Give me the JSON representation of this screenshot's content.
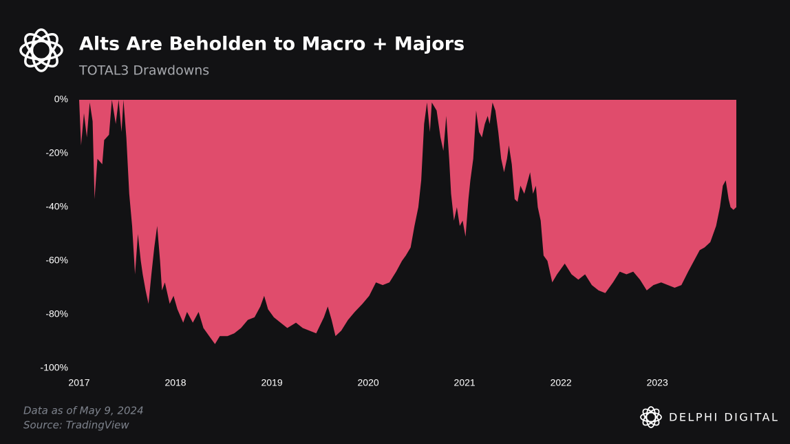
{
  "chart_data": {
    "type": "area",
    "title": "Alts Are Beholden to Macro + Majors",
    "subtitle": "TOTAL3 Drawdowns",
    "note": "Data as of May 9, 2024",
    "source": "Source: TradingView",
    "brand": "DELPHI DIGITAL",
    "color": "#e04c6c",
    "x": [
      2017.0,
      2017.02,
      2017.05,
      2017.08,
      2017.11,
      2017.14,
      2017.16,
      2017.19,
      2017.24,
      2017.26,
      2017.31,
      2017.34,
      2017.38,
      2017.41,
      2017.44,
      2017.46,
      2017.49,
      2017.52,
      2017.55,
      2017.58,
      2017.61,
      2017.64,
      2017.66,
      2017.69,
      2017.72,
      2017.75,
      2017.78,
      2017.81,
      2017.84,
      2017.86,
      2017.89,
      2017.94,
      2017.98,
      2018.02,
      2018.08,
      2018.12,
      2018.18,
      2018.24,
      2018.29,
      2018.35,
      2018.41,
      2018.46,
      2018.54,
      2018.61,
      2018.68,
      2018.75,
      2018.82,
      2018.88,
      2018.92,
      2018.96,
      2019.02,
      2019.09,
      2019.16,
      2019.25,
      2019.32,
      2019.39,
      2019.46,
      2019.54,
      2019.58,
      2019.62,
      2019.66,
      2019.72,
      2019.79,
      2019.86,
      2019.94,
      2020.01,
      2020.08,
      2020.15,
      2020.22,
      2020.29,
      2020.35,
      2020.39,
      2020.44,
      2020.48,
      2020.52,
      2020.55,
      2020.58,
      2020.61,
      2020.64,
      2020.66,
      2020.71,
      2020.75,
      2020.78,
      2020.81,
      2020.84,
      2020.86,
      2020.89,
      2020.92,
      2020.95,
      2020.98,
      2021.01,
      2021.04,
      2021.06,
      2021.09,
      2021.12,
      2021.15,
      2021.18,
      2021.21,
      2021.24,
      2021.26,
      2021.29,
      2021.32,
      2021.35,
      2021.38,
      2021.41,
      2021.44,
      2021.46,
      2021.49,
      2021.52,
      2021.55,
      2021.58,
      2021.62,
      2021.68,
      2021.71,
      2021.74,
      2021.76,
      2021.79,
      2021.82,
      2021.86,
      2021.91,
      2021.96,
      2022.04,
      2022.11,
      2022.18,
      2022.25,
      2022.32,
      2022.39,
      2022.46,
      2022.54,
      2022.61,
      2022.68,
      2022.75,
      2022.82,
      2022.89,
      2022.96,
      2023.04,
      2023.11,
      2023.18,
      2023.25,
      2023.32,
      2023.38,
      2023.44,
      2023.49,
      2023.55,
      2023.61,
      2023.65,
      2023.68,
      2023.71,
      2023.74,
      2023.76,
      2023.79,
      2023.82
    ],
    "values": [
      0,
      -17,
      -5,
      -14,
      -1,
      -8,
      -37,
      -22,
      -24,
      -15,
      -13,
      0,
      -9,
      0,
      -12,
      0,
      -14,
      -35,
      -47,
      -65,
      -50,
      -60,
      -65,
      -71,
      -76,
      -65,
      -55,
      -47,
      -60,
      -71,
      -68,
      -76,
      -73,
      -78,
      -83,
      -79,
      -83,
      -79,
      -85,
      -88,
      -91,
      -88,
      -88,
      -87,
      -85,
      -82,
      -81,
      -77,
      -73,
      -78,
      -81,
      -83,
      -85,
      -83,
      -85,
      -86,
      -87,
      -81,
      -77,
      -82,
      -88,
      -86,
      -82,
      -79,
      -76,
      -73,
      -68,
      -69,
      -68,
      -64,
      -60,
      -58,
      -55,
      -47,
      -40,
      -30,
      -9,
      -1,
      -12,
      -1,
      -4,
      -14,
      -19,
      -6,
      -22,
      -35,
      -45,
      -40,
      -47,
      -45,
      -51,
      -37,
      -30,
      -22,
      -4,
      -12,
      -14,
      -9,
      -6,
      -9,
      -1,
      -4,
      -12,
      -22,
      -27,
      -22,
      -17,
      -24,
      -37,
      -38,
      -32,
      -35,
      -27,
      -35,
      -32,
      -40,
      -45,
      -58,
      -60,
      -68,
      -65,
      -61,
      -65,
      -67,
      -65,
      -69,
      -71,
      -72,
      -68,
      -64,
      -65,
      -64,
      -67,
      -71,
      -69,
      -68,
      -69,
      -70,
      -69,
      -64,
      -60,
      -56,
      -55,
      -53,
      -47,
      -40,
      -32,
      -30,
      -37,
      -40,
      -41,
      -40
    ],
    "xlim": [
      2017,
      2023.82
    ],
    "xticks": [
      2017,
      2018,
      2019,
      2020,
      2021,
      2022,
      2023
    ],
    "ylim": [
      -100,
      0
    ],
    "yticks": [
      {
        "value": 0,
        "label": "0%"
      },
      {
        "value": -20,
        "label": "-20%"
      },
      {
        "value": -40,
        "label": "-40%"
      },
      {
        "value": -60,
        "label": "-60%"
      },
      {
        "value": -80,
        "label": "-80%"
      },
      {
        "value": -100,
        "label": "-100%"
      }
    ]
  }
}
